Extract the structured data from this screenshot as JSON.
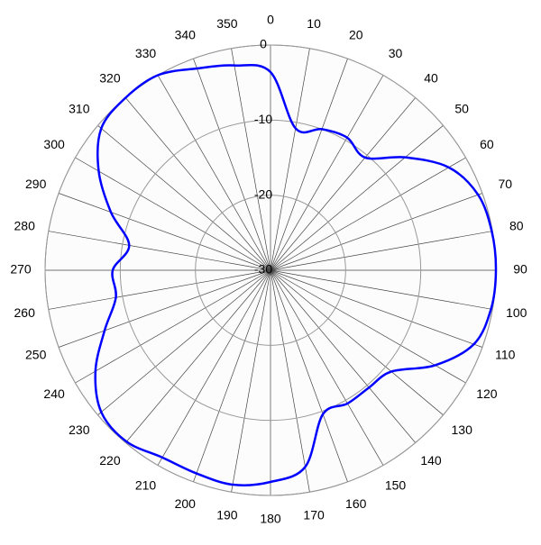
{
  "chart_data": {
    "type": "polar-line",
    "theta": [
      0,
      10,
      20,
      30,
      40,
      50,
      60,
      70,
      80,
      90,
      100,
      110,
      120,
      130,
      140,
      150,
      160,
      170,
      180,
      190,
      200,
      210,
      220,
      230,
      240,
      250,
      260,
      270,
      280,
      290,
      300,
      310,
      320,
      330,
      340,
      350
    ],
    "series": [
      {
        "color": "#0000ff",
        "values": [
          -3.6,
          -10.8,
          -10,
          -9.6,
          -10.4,
          -6.6,
          -2.6,
          -0.6,
          -0.1,
          0,
          -0.2,
          -1.2,
          -4.7,
          -9,
          -9.6,
          -9.5,
          -9.6,
          -3.4,
          -1.8,
          -1,
          -1.2,
          -1.2,
          -0.2,
          -0.6,
          -3.1,
          -6.5,
          -9.1,
          -9,
          -10.9,
          -7.4,
          -3.6,
          -0.6,
          0,
          0,
          -1.4,
          -2.3
        ]
      }
    ],
    "rlim": [
      -30,
      0
    ],
    "rticks": [
      -30,
      -20,
      -10,
      0
    ],
    "thetaticks": [
      0,
      10,
      20,
      30,
      40,
      50,
      60,
      70,
      80,
      90,
      100,
      110,
      120,
      130,
      140,
      150,
      160,
      170,
      180,
      190,
      200,
      210,
      220,
      230,
      240,
      250,
      260,
      270,
      280,
      290,
      300,
      310,
      320,
      330,
      340,
      350
    ]
  }
}
